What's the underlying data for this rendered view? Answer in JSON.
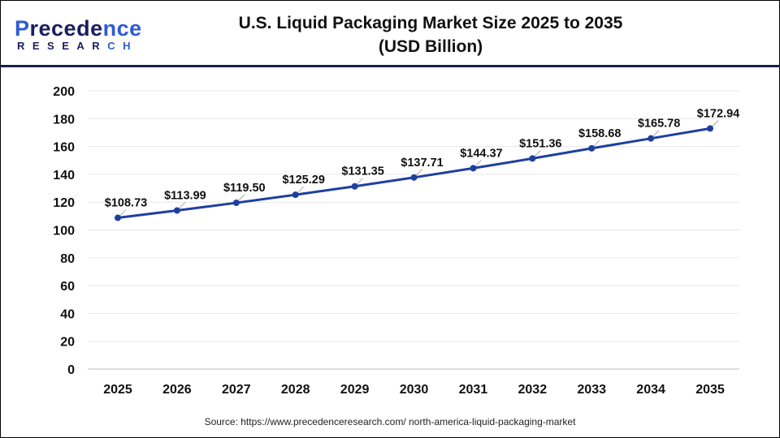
{
  "logo": {
    "line1_a": "P",
    "line1_b": "recede",
    "line1_c": "nce",
    "line2_a": "RESEAR",
    "line2_b": "CH"
  },
  "title_line1": "U.S. Liquid Packaging Market Size 2025 to 2035",
  "title_line2": "(USD Billion)",
  "source": "Source: https://www.precedenceresearch.com/ north-america-liquid-packaging-market",
  "chart_data": {
    "type": "line",
    "title": "U.S. Liquid Packaging Market Size 2025 to 2035 (USD Billion)",
    "categories": [
      "2025",
      "2026",
      "2027",
      "2028",
      "2029",
      "2030",
      "2031",
      "2032",
      "2033",
      "2034",
      "2035"
    ],
    "values": [
      108.73,
      113.99,
      119.5,
      125.29,
      131.35,
      137.71,
      144.37,
      151.36,
      158.68,
      165.78,
      172.94
    ],
    "data_labels": [
      "$108.73",
      "$113.99",
      "$119.50",
      "$125.29",
      "$131.35",
      "$137.71",
      "$144.37",
      "$151.36",
      "$158.68",
      "$165.78",
      "$172.94"
    ],
    "ylim": [
      0,
      200
    ],
    "yticks": [
      "0",
      "20",
      "40",
      "60",
      "80",
      "100",
      "120",
      "140",
      "160",
      "180",
      "200"
    ],
    "grid": true,
    "line_color": "#1f3f9f"
  }
}
